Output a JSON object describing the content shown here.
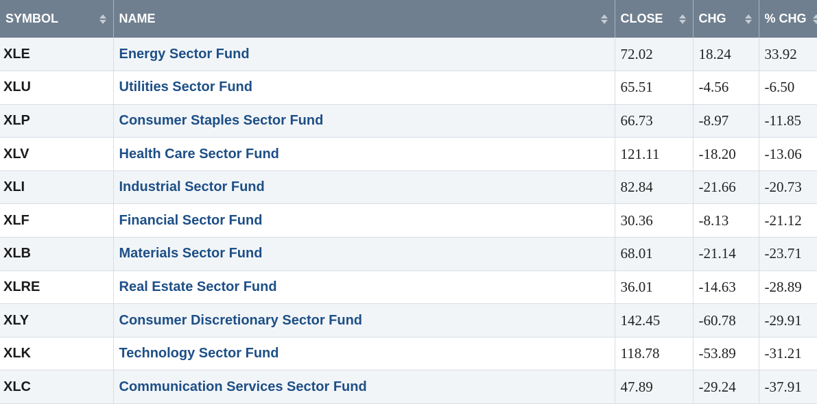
{
  "headers": {
    "symbol": "SYMBOL",
    "name": "NAME",
    "close": "CLOSE",
    "chg": "CHG",
    "pct_chg": "% CHG"
  },
  "rows": [
    {
      "symbol": "XLE",
      "name": "Energy Sector Fund",
      "close": "72.02",
      "chg": "18.24",
      "pct_chg": "33.92"
    },
    {
      "symbol": "XLU",
      "name": "Utilities Sector Fund",
      "close": "65.51",
      "chg": "-4.56",
      "pct_chg": "-6.50"
    },
    {
      "symbol": "XLP",
      "name": "Consumer Staples Sector Fund",
      "close": "66.73",
      "chg": "-8.97",
      "pct_chg": "-11.85"
    },
    {
      "symbol": "XLV",
      "name": "Health Care Sector Fund",
      "close": "121.11",
      "chg": "-18.20",
      "pct_chg": "-13.06"
    },
    {
      "symbol": "XLI",
      "name": "Industrial Sector Fund",
      "close": "82.84",
      "chg": "-21.66",
      "pct_chg": "-20.73"
    },
    {
      "symbol": "XLF",
      "name": "Financial Sector Fund",
      "close": "30.36",
      "chg": "-8.13",
      "pct_chg": "-21.12"
    },
    {
      "symbol": "XLB",
      "name": "Materials Sector Fund",
      "close": "68.01",
      "chg": "-21.14",
      "pct_chg": "-23.71"
    },
    {
      "symbol": "XLRE",
      "name": "Real Estate Sector Fund",
      "close": "36.01",
      "chg": "-14.63",
      "pct_chg": "-28.89"
    },
    {
      "symbol": "XLY",
      "name": "Consumer Discretionary Sector Fund",
      "close": "142.45",
      "chg": "-60.78",
      "pct_chg": "-29.91"
    },
    {
      "symbol": "XLK",
      "name": "Technology Sector Fund",
      "close": "118.78",
      "chg": "-53.89",
      "pct_chg": "-31.21"
    },
    {
      "symbol": "XLC",
      "name": "Communication Services Sector Fund",
      "close": "47.89",
      "chg": "-29.24",
      "pct_chg": "-37.91"
    }
  ],
  "colors": {
    "header_bg": "#6f7f8f",
    "link": "#1d4f86",
    "row_alt": "#f2f5f8"
  },
  "icons": {
    "sort": "sort-arrows-icon"
  }
}
